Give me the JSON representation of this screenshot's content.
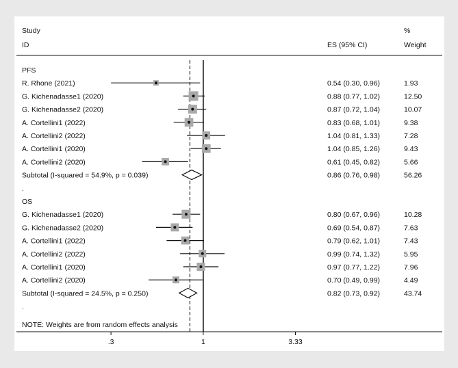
{
  "chart_data": {
    "type": "forest",
    "headers": {
      "study_line1": "Study",
      "study_line2": "ID",
      "es": "ES (95% CI)",
      "weight_line1": "%",
      "weight_line2": "Weight"
    },
    "x_scale": "log",
    "xlim": [
      0.19,
      5.0
    ],
    "null_line": 1,
    "overall_dashed_line": 0.84,
    "x_ticks": [
      {
        "value": 0.3,
        "label": ".3"
      },
      {
        "value": 1,
        "label": "1"
      },
      {
        "value": 3.33,
        "label": "3.33"
      }
    ],
    "groups": [
      {
        "name": "PFS",
        "studies": [
          {
            "label": "R. Rhone (2021)",
            "es": 0.54,
            "lo": 0.3,
            "hi": 0.96,
            "es_text": "0.54 (0.30, 0.96)",
            "weight": 1.93,
            "weight_text": "1.93"
          },
          {
            "label": "G. Kichenadasse1 (2020)",
            "es": 0.88,
            "lo": 0.77,
            "hi": 1.02,
            "es_text": "0.88 (0.77, 1.02)",
            "weight": 12.5,
            "weight_text": "12.50"
          },
          {
            "label": "G. Kichenadasse2 (2020)",
            "es": 0.87,
            "lo": 0.72,
            "hi": 1.04,
            "es_text": "0.87 (0.72, 1.04)",
            "weight": 10.07,
            "weight_text": "10.07"
          },
          {
            "label": "A. Cortellini1 (2022)",
            "es": 0.83,
            "lo": 0.68,
            "hi": 1.01,
            "es_text": "0.83 (0.68, 1.01)",
            "weight": 9.38,
            "weight_text": "9.38"
          },
          {
            "label": "A. Cortellini2 (2022)",
            "es": 1.04,
            "lo": 0.81,
            "hi": 1.33,
            "es_text": "1.04 (0.81, 1.33)",
            "weight": 7.28,
            "weight_text": "7.28"
          },
          {
            "label": "A. Cortellini1 (2020)",
            "es": 1.04,
            "lo": 0.85,
            "hi": 1.26,
            "es_text": "1.04 (0.85, 1.26)",
            "weight": 9.43,
            "weight_text": "9.43"
          },
          {
            "label": "A. Cortellini2 (2020)",
            "es": 0.61,
            "lo": 0.45,
            "hi": 0.82,
            "es_text": "0.61 (0.45, 0.82)",
            "weight": 5.66,
            "weight_text": "5.66"
          }
        ],
        "subtotal": {
          "label": "Subtotal  (I-squared = 54.9%, p = 0.039)",
          "es": 0.86,
          "lo": 0.76,
          "hi": 0.98,
          "es_text": "0.86 (0.76, 0.98)",
          "weight_text": "56.26"
        }
      },
      {
        "name": "OS",
        "studies": [
          {
            "label": "G. Kichenadasse1 (2020)",
            "es": 0.8,
            "lo": 0.67,
            "hi": 0.96,
            "es_text": "0.80 (0.67, 0.96)",
            "weight": 10.28,
            "weight_text": "10.28"
          },
          {
            "label": "G. Kichenadasse2 (2020)",
            "es": 0.69,
            "lo": 0.54,
            "hi": 0.87,
            "es_text": "0.69 (0.54, 0.87)",
            "weight": 7.63,
            "weight_text": "7.63"
          },
          {
            "label": "A. Cortellini1 (2022)",
            "es": 0.79,
            "lo": 0.62,
            "hi": 1.01,
            "es_text": "0.79 (0.62, 1.01)",
            "weight": 7.43,
            "weight_text": "7.43"
          },
          {
            "label": "A. Cortellini2 (2022)",
            "es": 0.99,
            "lo": 0.74,
            "hi": 1.32,
            "es_text": "0.99 (0.74, 1.32)",
            "weight": 5.95,
            "weight_text": "5.95"
          },
          {
            "label": "A. Cortellini1 (2020)",
            "es": 0.97,
            "lo": 0.77,
            "hi": 1.22,
            "es_text": "0.97 (0.77, 1.22)",
            "weight": 7.96,
            "weight_text": "7.96"
          },
          {
            "label": "A. Cortellini2 (2020)",
            "es": 0.7,
            "lo": 0.49,
            "hi": 0.99,
            "es_text": "0.70 (0.49, 0.99)",
            "weight": 4.49,
            "weight_text": "4.49"
          }
        ],
        "subtotal": {
          "label": "Subtotal  (I-squared = 24.5%, p = 0.250)",
          "es": 0.82,
          "lo": 0.73,
          "hi": 0.92,
          "es_text": "0.82 (0.73, 0.92)",
          "weight_text": "43.74"
        }
      }
    ],
    "group_separator": ".",
    "footer_dot": ".",
    "note": "NOTE: Weights are from random effects analysis"
  },
  "colors": {
    "background": "#e9e9e9",
    "panel": "#ffffff",
    "box": "#a9a9a9",
    "line": "#111111"
  }
}
